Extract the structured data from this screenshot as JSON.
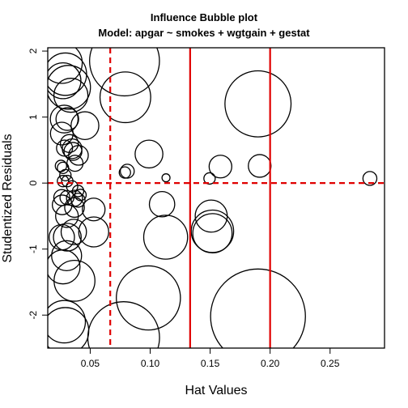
{
  "chart_data": {
    "type": "scatter",
    "title": "Influence Bubble plot",
    "subtitle": "Model: apgar ~ smokes + wgtgain + gestat",
    "xlabel": "Hat Values",
    "ylabel": "Studentized Residuals",
    "xlim": [
      0.0146,
      0.2954
    ],
    "ylim": [
      -2.5,
      2.05
    ],
    "x_ticks": [
      0.05,
      0.1,
      0.15,
      0.2,
      0.25
    ],
    "x_tick_labels": [
      "0.05",
      "0.10",
      "0.15",
      "0.20",
      "0.25"
    ],
    "y_ticks": [
      -2,
      -1,
      0,
      1,
      2
    ],
    "y_tick_labels": [
      "-2",
      "-1",
      "0",
      "1",
      "2"
    ],
    "reference_lines": [
      {
        "axis": "x",
        "value": 0.0667,
        "color": "#e00000",
        "style": "dashed"
      },
      {
        "axis": "x",
        "value": 0.1333,
        "color": "#e00000",
        "style": "solid"
      },
      {
        "axis": "x",
        "value": 0.2,
        "color": "#e00000",
        "style": "solid"
      },
      {
        "axis": "y",
        "value": 0,
        "color": "#e00000",
        "style": "dashed"
      }
    ],
    "size_variable": "Cook's distance (relative)",
    "points": [
      {
        "x": 0.0263,
        "y": 1.82,
        "size": 0.13
      },
      {
        "x": 0.0293,
        "y": 1.65,
        "size": 0.14
      },
      {
        "x": 0.0273,
        "y": 1.55,
        "size": 0.1
      },
      {
        "x": 0.0319,
        "y": 1.45,
        "size": 0.15
      },
      {
        "x": 0.0339,
        "y": 1.33,
        "size": 0.09
      },
      {
        "x": 0.0786,
        "y": 1.85,
        "size": 0.38
      },
      {
        "x": 0.0793,
        "y": 1.3,
        "size": 0.2
      },
      {
        "x": 0.1899,
        "y": 1.2,
        "size": 0.34
      },
      {
        "x": 0.0456,
        "y": 0.87,
        "size": 0.06
      },
      {
        "x": 0.0283,
        "y": 0.97,
        "size": 0.06
      },
      {
        "x": 0.0309,
        "y": 0.97,
        "size": 0.04
      },
      {
        "x": 0.0263,
        "y": 0.75,
        "size": 0.04
      },
      {
        "x": 0.0326,
        "y": 0.6,
        "size": 0.025
      },
      {
        "x": 0.0349,
        "y": 0.52,
        "size": 0.03
      },
      {
        "x": 0.0356,
        "y": 0.48,
        "size": 0.025
      },
      {
        "x": 0.0402,
        "y": 0.42,
        "size": 0.03
      },
      {
        "x": 0.0286,
        "y": 0.53,
        "size": 0.02
      },
      {
        "x": 0.0373,
        "y": 0.3,
        "size": 0.02
      },
      {
        "x": 0.0256,
        "y": 0.26,
        "size": 0.01
      },
      {
        "x": 0.0273,
        "y": 0.23,
        "size": 0.01
      },
      {
        "x": 0.0293,
        "y": 0.12,
        "size": 0.01
      },
      {
        "x": 0.0273,
        "y": 0.03,
        "size": 0.01
      },
      {
        "x": 0.0309,
        "y": 0.03,
        "size": 0.01
      },
      {
        "x": 0.0349,
        "y": -0.05,
        "size": 0.01
      },
      {
        "x": 0.0399,
        "y": -0.12,
        "size": 0.01
      },
      {
        "x": 0.099,
        "y": 0.44,
        "size": 0.06
      },
      {
        "x": 0.0809,
        "y": 0.18,
        "size": 0.015
      },
      {
        "x": 0.0789,
        "y": 0.16,
        "size": 0.01
      },
      {
        "x": 0.1586,
        "y": 0.25,
        "size": 0.04
      },
      {
        "x": 0.1913,
        "y": 0.26,
        "size": 0.04
      },
      {
        "x": 0.1132,
        "y": 0.08,
        "size": 0.005
      },
      {
        "x": 0.1495,
        "y": 0.07,
        "size": 0.01
      },
      {
        "x": 0.2832,
        "y": 0.07,
        "size": 0.015
      },
      {
        "x": 0.0263,
        "y": -0.22,
        "size": 0.02
      },
      {
        "x": 0.0306,
        "y": -0.22,
        "size": 0.015
      },
      {
        "x": 0.0369,
        "y": -0.23,
        "size": 0.02
      },
      {
        "x": 0.0399,
        "y": -0.26,
        "size": 0.015
      },
      {
        "x": 0.0419,
        "y": -0.18,
        "size": 0.01
      },
      {
        "x": 0.0266,
        "y": -0.33,
        "size": 0.03
      },
      {
        "x": 0.0369,
        "y": -0.37,
        "size": 0.03
      },
      {
        "x": 0.0529,
        "y": -0.4,
        "size": 0.04
      },
      {
        "x": 0.0306,
        "y": -0.5,
        "size": 0.04
      },
      {
        "x": 0.1099,
        "y": -0.32,
        "size": 0.05
      },
      {
        "x": 0.1509,
        "y": -0.5,
        "size": 0.08
      },
      {
        "x": 0.1519,
        "y": -0.73,
        "size": 0.14
      },
      {
        "x": 0.1519,
        "y": -0.76,
        "size": 0.12
      },
      {
        "x": 0.1129,
        "y": -0.82,
        "size": 0.15
      },
      {
        "x": 0.0263,
        "y": -0.82,
        "size": 0.05
      },
      {
        "x": 0.0309,
        "y": -0.82,
        "size": 0.06
      },
      {
        "x": 0.0363,
        "y": -0.74,
        "size": 0.05
      },
      {
        "x": 0.0529,
        "y": -0.74,
        "size": 0.07
      },
      {
        "x": 0.0303,
        "y": -1.1,
        "size": 0.07
      },
      {
        "x": 0.0273,
        "y": -1.27,
        "size": 0.09
      },
      {
        "x": 0.0369,
        "y": -1.48,
        "size": 0.13
      },
      {
        "x": 0.0283,
        "y": -2.1,
        "size": 0.14
      },
      {
        "x": 0.0293,
        "y": -2.24,
        "size": 0.17
      },
      {
        "x": 0.0985,
        "y": -1.74,
        "size": 0.32
      },
      {
        "x": 0.0779,
        "y": -2.34,
        "size": 0.4
      },
      {
        "x": 0.1899,
        "y": -2.02,
        "size": 0.7
      }
    ]
  }
}
